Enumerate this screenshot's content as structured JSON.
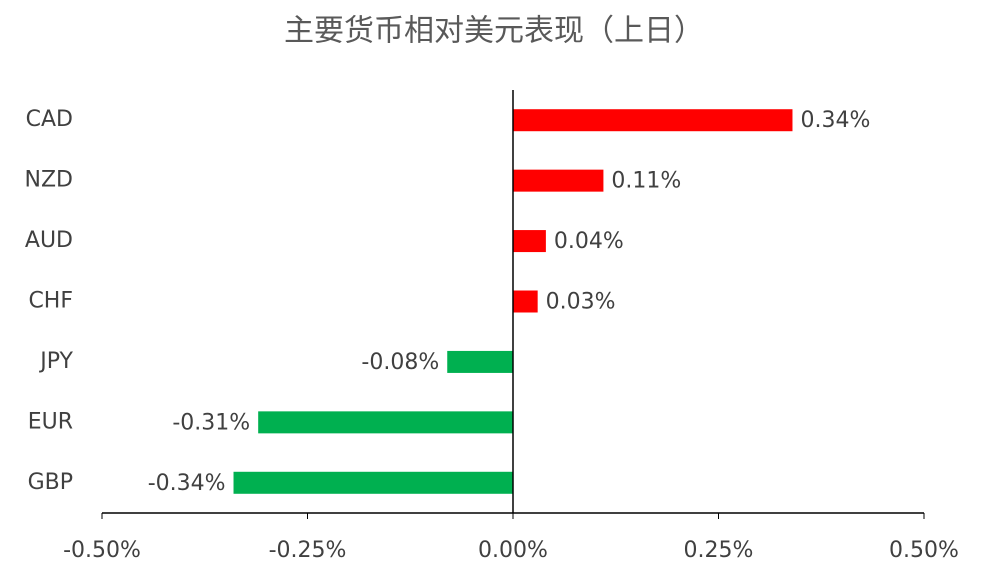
{
  "chart_data": {
    "type": "hbar",
    "title": "主要货币相对美元表现（上日）",
    "categories": [
      "CAD",
      "NZD",
      "AUD",
      "CHF",
      "JPY",
      "EUR",
      "GBP"
    ],
    "values": [
      0.34,
      0.11,
      0.04,
      0.03,
      -0.08,
      -0.31,
      -0.34
    ],
    "value_labels": [
      "0.34%",
      "0.11%",
      "0.04%",
      "0.03%",
      "-0.08%",
      "-0.31%",
      "-0.34%"
    ],
    "colors": [
      "#ff0000",
      "#ff0000",
      "#ff0000",
      "#ff0000",
      "#00b050",
      "#00b050",
      "#00b050"
    ],
    "xlim": [
      -0.5,
      0.5
    ],
    "xticks": [
      {
        "value": -0.5,
        "label": "-0.50%"
      },
      {
        "value": -0.25,
        "label": "-0.25%"
      },
      {
        "value": 0,
        "label": "0.00%"
      },
      {
        "value": 0.25,
        "label": "0.25%"
      },
      {
        "value": 0.5,
        "label": "0.50%"
      }
    ],
    "grid": false
  }
}
